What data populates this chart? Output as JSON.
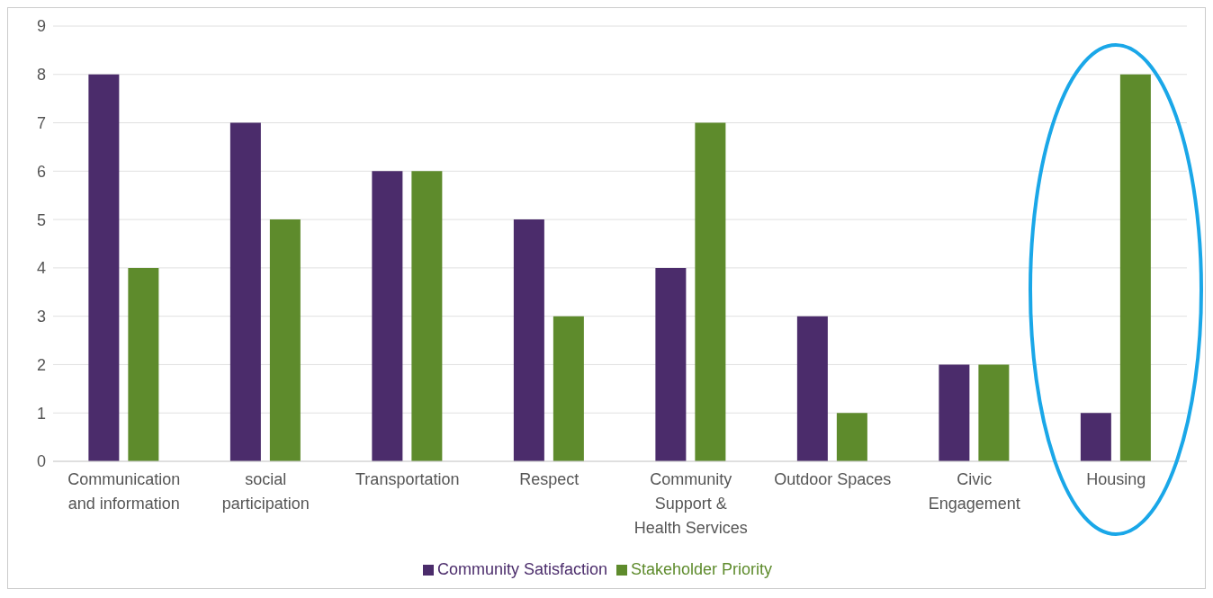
{
  "chart_data": {
    "type": "bar",
    "categories": [
      "Communication and information",
      "social participation",
      "Transportation",
      "Respect",
      "Community Support & Health Services",
      "Outdoor Spaces",
      "Civic Engagement",
      "Housing"
    ],
    "series": [
      {
        "name": "Community Satisfaction",
        "color": "#4b2c6b",
        "values": [
          8,
          7,
          6,
          5,
          4,
          3,
          2,
          1
        ]
      },
      {
        "name": "Stakeholder Priority",
        "color": "#5e8b2c",
        "values": [
          4,
          5,
          6,
          3,
          7,
          1,
          2,
          8
        ]
      }
    ],
    "ylim": [
      0,
      9
    ],
    "yticks": [
      0,
      1,
      2,
      3,
      4,
      5,
      6,
      7,
      8,
      9
    ],
    "grid": "y",
    "legend": "bottom"
  }
}
